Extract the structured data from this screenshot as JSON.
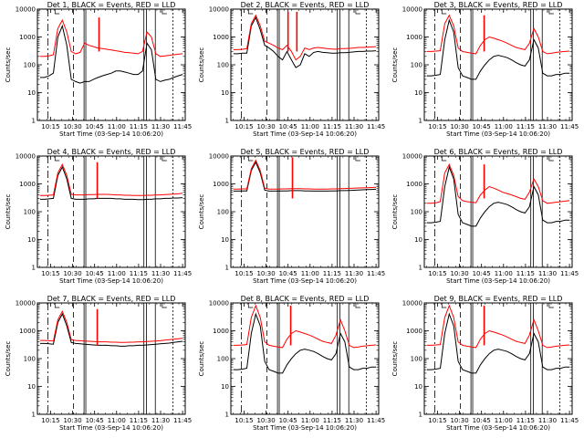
{
  "chart_data": {
    "type": "line",
    "y_scale": "log",
    "ylim": [
      1,
      10000
    ],
    "y_ticks": [
      "1",
      "10",
      "100",
      "1000",
      "10000"
    ],
    "ylabel": "Counts/sec",
    "x_ticks": [
      "10:15",
      "10:30",
      "10:45",
      "11:00",
      "11:15",
      "11:30",
      "11:45"
    ],
    "colors": {
      "black_series": "#000000",
      "red_series": "#ff0000"
    },
    "panels": [
      {
        "title": "Det 1, BLACK = Events, RED = LLD",
        "xlabel": "Start Time (03-Sep-14 10:06:20)",
        "series": [
          {
            "name": "BLACK",
            "color": "#000000",
            "values": [
              35,
              35,
              40,
              50,
              1000,
              2500,
              500,
              30,
              25,
              22,
              25,
              25,
              30,
              35,
              40,
              45,
              50,
              60,
              60,
              55,
              50,
              45,
              45,
              60,
              600,
              350,
              30,
              25,
              28,
              30,
              35,
              40,
              45
            ]
          },
          {
            "name": "RED",
            "color": "#ff0000",
            "values": [
              200,
              200,
              210,
              230,
              2000,
              4000,
              1500,
              300,
              250,
              280,
              600,
              500,
              450,
              400,
              380,
              360,
              340,
              320,
              300,
              280,
              270,
              260,
              250,
              300,
              1500,
              1000,
              250,
              200,
              210,
              220,
              230,
              240,
              250
            ]
          }
        ],
        "spikes_red": [
          {
            "x": 10.8,
            "y": 5000
          }
        ]
      },
      {
        "title": "Det 2, BLACK = Events, RED = LLD",
        "xlabel": "Start Time (03-Sep-14 10:06:20)",
        "series": [
          {
            "name": "BLACK",
            "color": "#000000",
            "values": [
              250,
              250,
              260,
              260,
              2500,
              5000,
              1800,
              500,
              400,
              300,
              200,
              150,
              300,
              150,
              80,
              100,
              250,
              200,
              280,
              300,
              280,
              270,
              260,
              260,
              270,
              270,
              280,
              290,
              300,
              300,
              310,
              310,
              320
            ]
          },
          {
            "name": "RED",
            "color": "#ff0000",
            "values": [
              350,
              350,
              360,
              380,
              3000,
              6000,
              2500,
              700,
              600,
              500,
              400,
              350,
              500,
              300,
              150,
              200,
              400,
              350,
              400,
              420,
              400,
              380,
              370,
              360,
              380,
              380,
              390,
              400,
              420,
              420,
              430,
              440,
              450
            ]
          }
        ],
        "spikes_red": [
          {
            "x": 10.75,
            "y": 8000
          },
          {
            "x": 10.85,
            "y": 8000
          }
        ]
      },
      {
        "title": "Det 3, BLACK = Events, RED = LLD",
        "xlabel": "Start Time (03-Sep-14 10:06:20)",
        "series": [
          {
            "name": "BLACK",
            "color": "#000000",
            "values": [
              40,
              40,
              42,
              45,
              800,
              4000,
              1500,
              80,
              40,
              35,
              30,
              30,
              60,
              100,
              150,
              200,
              220,
              200,
              180,
              150,
              120,
              100,
              90,
              150,
              800,
              400,
              50,
              40,
              40,
              45,
              45,
              50,
              50
            ]
          },
          {
            "name": "RED",
            "color": "#ff0000",
            "values": [
              300,
              300,
              310,
              320,
              3000,
              6000,
              2500,
              400,
              300,
              280,
              260,
              250,
              500,
              800,
              1000,
              900,
              800,
              700,
              600,
              500,
              420,
              380,
              350,
              600,
              2000,
              1000,
              300,
              250,
              260,
              280,
              290,
              300,
              310
            ]
          }
        ],
        "spikes_red": [
          {
            "x": 10.78,
            "y": 6000
          }
        ]
      },
      {
        "title": "Det 4, BLACK = Events, RED = LLD",
        "xlabel": "Start Time (03-Sep-14 10:06:20)",
        "series": [
          {
            "name": "BLACK",
            "color": "#000000",
            "values": [
              280,
              280,
              290,
              300,
              2000,
              4000,
              1500,
              300,
              280,
              280,
              280,
              290,
              290,
              300,
              300,
              300,
              300,
              290,
              290,
              280,
              280,
              280,
              270,
              270,
              280,
              280,
              290,
              290,
              300,
              300,
              310,
              310,
              320
            ]
          },
          {
            "name": "RED",
            "color": "#ff0000",
            "values": [
              380,
              380,
              390,
              400,
              2500,
              5000,
              2000,
              420,
              400,
              400,
              400,
              410,
              410,
              420,
              420,
              420,
              410,
              400,
              400,
              390,
              390,
              380,
              380,
              380,
              390,
              390,
              400,
              400,
              410,
              420,
              430,
              440,
              460
            ]
          }
        ],
        "spikes_red": [
          {
            "x": 10.78,
            "y": 6000
          }
        ]
      },
      {
        "title": "Det 5, BLACK = Events, RED = LLD",
        "xlabel": "Start Time (03-Sep-14 10:06:20)",
        "series": [
          {
            "name": "BLACK",
            "color": "#000000",
            "values": [
              550,
              550,
              560,
              560,
              3000,
              6000,
              2500,
              600,
              550,
              550,
              550,
              560,
              560,
              570,
              570,
              570,
              560,
              560,
              550,
              550,
              550,
              550,
              560,
              560,
              570,
              570,
              580,
              590,
              600,
              610,
              620,
              630,
              640
            ]
          },
          {
            "name": "RED",
            "color": "#ff0000",
            "values": [
              650,
              650,
              660,
              660,
              3500,
              7000,
              3000,
              700,
              650,
              650,
              650,
              660,
              660,
              670,
              670,
              670,
              660,
              660,
              650,
              650,
              650,
              650,
              660,
              660,
              670,
              680,
              690,
              700,
              710,
              720,
              730,
              740,
              750
            ]
          }
        ],
        "spikes_red": [
          {
            "x": 10.8,
            "y": 9000
          }
        ]
      },
      {
        "title": "Det 6, BLACK = Events, RED = LLD",
        "xlabel": "Start Time (03-Sep-14 10:06:20)",
        "series": [
          {
            "name": "BLACK",
            "color": "#000000",
            "values": [
              40,
              40,
              42,
              45,
              800,
              4000,
              1500,
              80,
              40,
              35,
              30,
              30,
              60,
              100,
              150,
              200,
              220,
              200,
              180,
              150,
              120,
              100,
              90,
              150,
              800,
              400,
              50,
              40,
              40,
              45,
              45,
              50,
              50
            ]
          },
          {
            "name": "RED",
            "color": "#ff0000",
            "values": [
              200,
              200,
              210,
              230,
              2500,
              5000,
              2000,
              350,
              250,
              230,
              220,
              210,
              400,
              600,
              800,
              700,
              600,
              500,
              450,
              400,
              350,
              300,
              280,
              500,
              1500,
              800,
              250,
              200,
              210,
              220,
              230,
              240,
              250
            ]
          }
        ],
        "spikes_red": [
          {
            "x": 10.78,
            "y": 5000
          }
        ]
      },
      {
        "title": "Det 7, BLACK = Events, RED = LLD",
        "xlabel": "Start Time (03-Sep-14 10:06:20)",
        "series": [
          {
            "name": "BLACK",
            "color": "#000000",
            "values": [
              350,
              350,
              340,
              330,
              2000,
              4000,
              1500,
              380,
              350,
              340,
              330,
              320,
              310,
              300,
              300,
              300,
              290,
              290,
              280,
              280,
              290,
              290,
              300,
              300,
              310,
              320,
              330,
              340,
              350,
              360,
              380,
              400,
              420
            ]
          },
          {
            "name": "RED",
            "color": "#ff0000",
            "values": [
              450,
              450,
              440,
              430,
              2500,
              5000,
              2000,
              480,
              450,
              440,
              430,
              420,
              410,
              400,
              400,
              400,
              390,
              390,
              380,
              380,
              390,
              390,
              400,
              400,
              410,
              420,
              430,
              440,
              460,
              480,
              500,
              520,
              540
            ]
          }
        ],
        "spikes_red": [
          {
            "x": 10.78,
            "y": 6000
          }
        ]
      },
      {
        "title": "Det 8, BLACK = Events, RED = LLD",
        "xlabel": "Start Time (03-Sep-14 10:06:20)",
        "series": [
          {
            "name": "BLACK",
            "color": "#000000",
            "values": [
              40,
              40,
              42,
              45,
              800,
              4000,
              1500,
              80,
              40,
              35,
              30,
              30,
              60,
              100,
              150,
              200,
              220,
              200,
              180,
              150,
              120,
              100,
              90,
              150,
              800,
              400,
              50,
              40,
              40,
              45,
              45,
              50,
              50
            ]
          },
          {
            "name": "RED",
            "color": "#ff0000",
            "values": [
              300,
              300,
              310,
              320,
              3000,
              8000,
              3000,
              400,
              300,
              280,
              260,
              250,
              500,
              800,
              1000,
              900,
              800,
              700,
              600,
              500,
              420,
              380,
              350,
              700,
              2500,
              1000,
              300,
              250,
              260,
              280,
              290,
              300,
              310
            ]
          }
        ],
        "spikes_red": [
          {
            "x": 10.78,
            "y": 8000
          }
        ]
      },
      {
        "title": "Det 9, BLACK = Events, RED = LLD",
        "xlabel": "Start Time (03-Sep-14 10:06:20)",
        "series": [
          {
            "name": "BLACK",
            "color": "#000000",
            "values": [
              40,
              40,
              42,
              45,
              800,
              4000,
              1500,
              80,
              40,
              35,
              30,
              30,
              60,
              100,
              150,
              200,
              220,
              200,
              180,
              150,
              120,
              100,
              90,
              150,
              800,
              400,
              50,
              40,
              40,
              45,
              45,
              50,
              50
            ]
          },
          {
            "name": "RED",
            "color": "#ff0000",
            "values": [
              300,
              300,
              310,
              320,
              3000,
              8000,
              3000,
              400,
              300,
              280,
              260,
              250,
              500,
              800,
              1000,
              900,
              800,
              700,
              600,
              500,
              420,
              380,
              350,
              700,
              2500,
              1000,
              300,
              250,
              260,
              280,
              290,
              300,
              310
            ]
          }
        ],
        "spikes_red": [
          {
            "x": 10.78,
            "y": 8000
          }
        ]
      }
    ]
  }
}
